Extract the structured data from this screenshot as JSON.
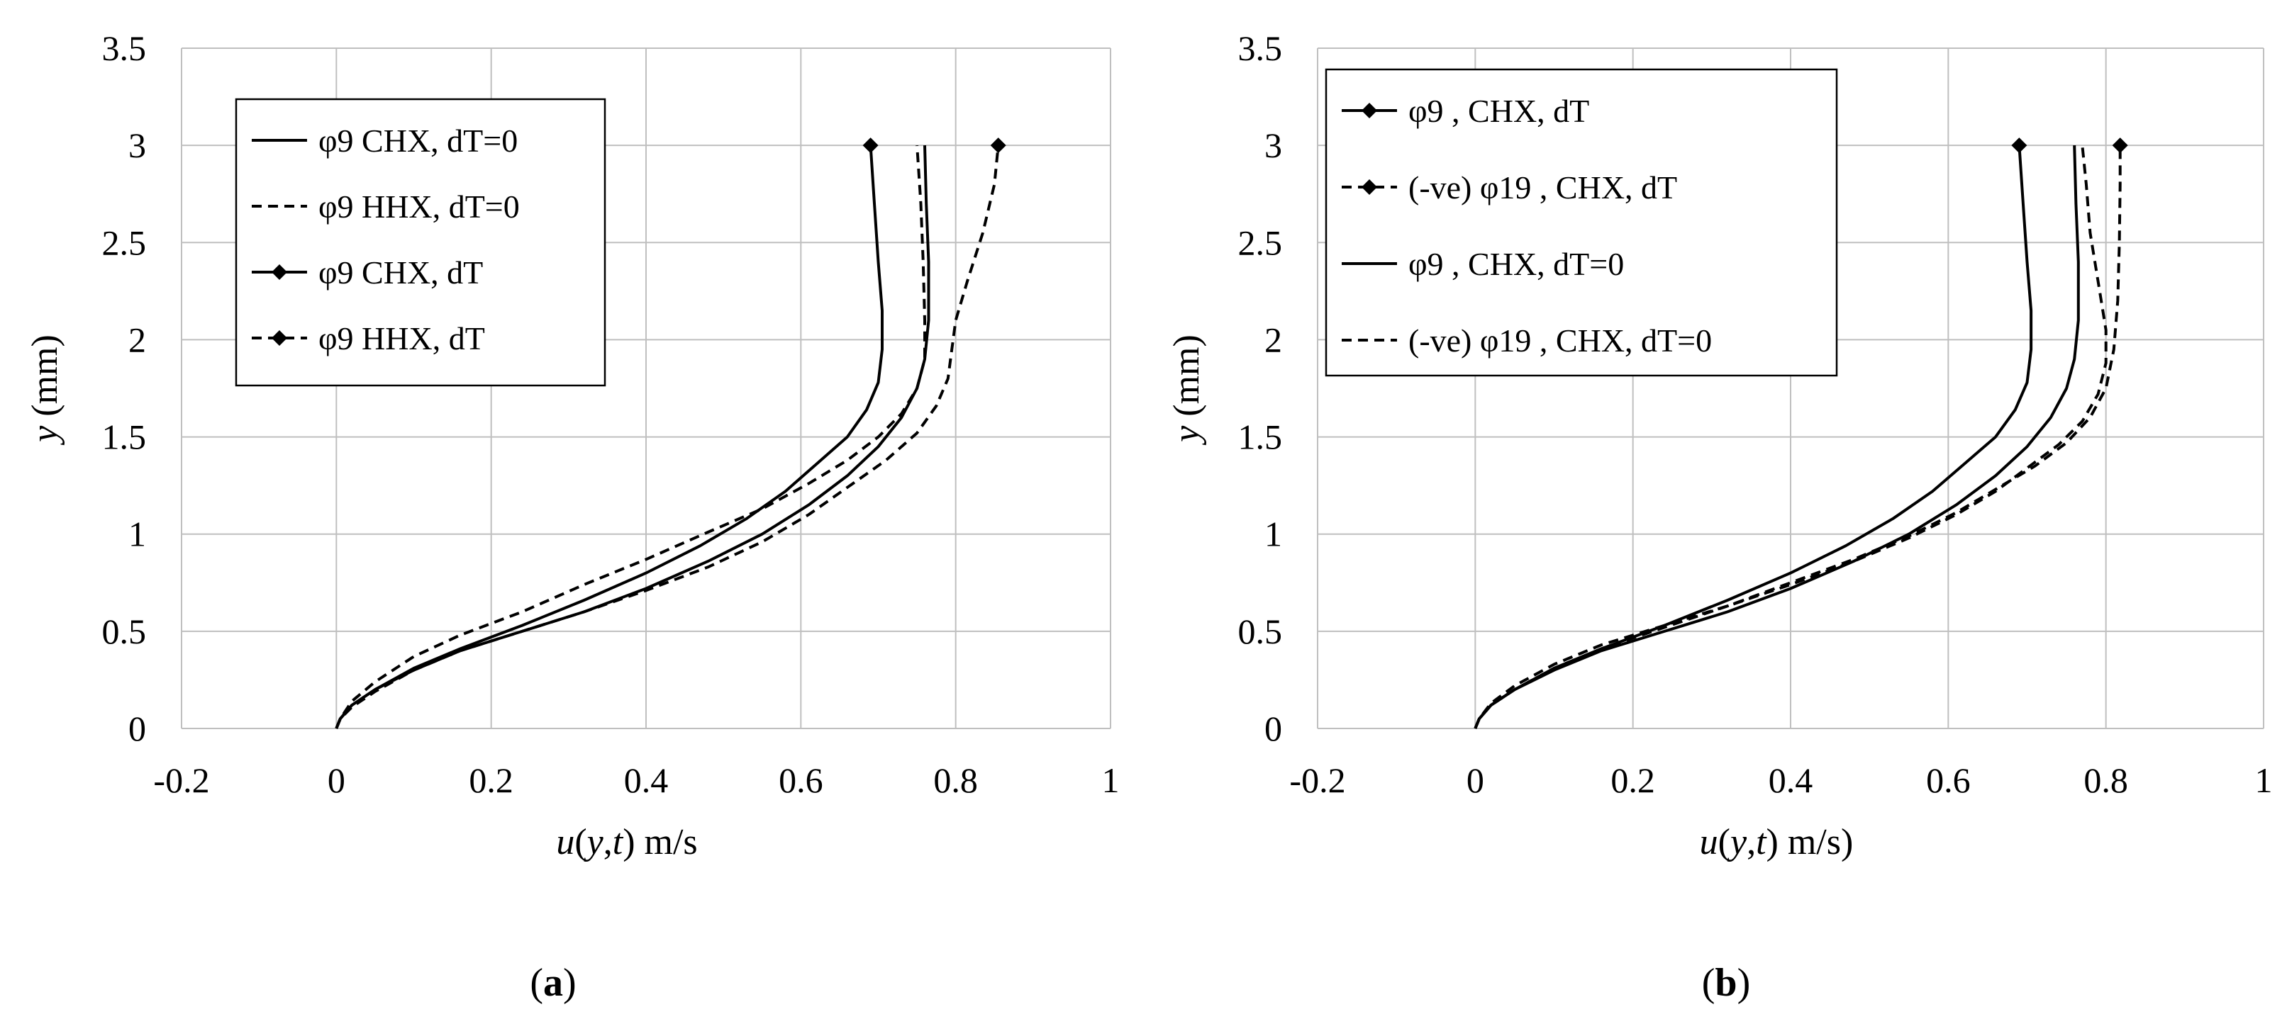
{
  "chart_data": [
    {
      "id": "a",
      "type": "line",
      "caption_letter": "a",
      "xlabel_parts": [
        "u",
        "(",
        "y",
        ",",
        "t",
        ") m/s"
      ],
      "ylabel_parts": [
        "y",
        " (mm)"
      ],
      "xlim": [
        -0.2,
        1
      ],
      "ylim": [
        0,
        3.5
      ],
      "xticks": [
        "-0.2",
        "0",
        "0.2",
        "0.4",
        "0.6",
        "0.8",
        "1"
      ],
      "yticks": [
        "0",
        "0.5",
        "1",
        "1.5",
        "2",
        "2.5",
        "3",
        "3.5"
      ],
      "grid": true,
      "legend_position": "top-left",
      "series": [
        {
          "name": "φ9   CHX, dT=0",
          "dash": "solid",
          "markers": false,
          "x": [
            0,
            0.005,
            0.02,
            0.05,
            0.1,
            0.16,
            0.24,
            0.32,
            0.4,
            0.48,
            0.55,
            0.61,
            0.66,
            0.7,
            0.73,
            0.75,
            0.76,
            0.765,
            0.765,
            0.762,
            0.76
          ],
          "y": [
            0,
            0.05,
            0.12,
            0.2,
            0.3,
            0.4,
            0.5,
            0.6,
            0.72,
            0.86,
            1.0,
            1.15,
            1.3,
            1.45,
            1.6,
            1.75,
            1.9,
            2.1,
            2.4,
            2.7,
            3.0
          ]
        },
        {
          "name": "φ9   HHX, dT=0",
          "dash": "dash",
          "markers": false,
          "x": [
            0,
            0.005,
            0.02,
            0.05,
            0.1,
            0.16,
            0.24,
            0.32,
            0.4,
            0.48,
            0.55,
            0.61,
            0.66,
            0.7,
            0.73,
            0.75,
            0.76,
            0.76,
            0.758,
            0.755,
            0.75
          ],
          "y": [
            0,
            0.05,
            0.14,
            0.24,
            0.37,
            0.48,
            0.6,
            0.74,
            0.87,
            1.01,
            1.13,
            1.26,
            1.38,
            1.5,
            1.62,
            1.75,
            1.9,
            2.1,
            2.4,
            2.7,
            3.0
          ]
        },
        {
          "name": "φ9   CHX, dT",
          "dash": "solid",
          "markers": true,
          "x": [
            0,
            0.005,
            0.02,
            0.05,
            0.1,
            0.16,
            0.24,
            0.32,
            0.4,
            0.47,
            0.53,
            0.58,
            0.62,
            0.66,
            0.685,
            0.7,
            0.705,
            0.705,
            0.7,
            0.695,
            0.69
          ],
          "y": [
            0,
            0.05,
            0.12,
            0.2,
            0.31,
            0.41,
            0.53,
            0.66,
            0.8,
            0.94,
            1.08,
            1.22,
            1.36,
            1.5,
            1.64,
            1.78,
            1.95,
            2.15,
            2.4,
            2.7,
            3.0
          ]
        },
        {
          "name": "φ9   HHX, dT",
          "dash": "dash",
          "markers": true,
          "x": [
            0,
            0.005,
            0.02,
            0.05,
            0.1,
            0.16,
            0.24,
            0.32,
            0.4,
            0.48,
            0.55,
            0.61,
            0.66,
            0.71,
            0.75,
            0.775,
            0.79,
            0.795,
            0.8,
            0.815,
            0.835,
            0.85,
            0.855
          ],
          "y": [
            0,
            0.05,
            0.11,
            0.19,
            0.3,
            0.4,
            0.5,
            0.6,
            0.71,
            0.83,
            0.96,
            1.1,
            1.24,
            1.38,
            1.52,
            1.66,
            1.8,
            1.95,
            2.1,
            2.3,
            2.55,
            2.8,
            3.0
          ]
        }
      ]
    },
    {
      "id": "b",
      "type": "line",
      "caption_letter": "b",
      "xlabel_parts": [
        "u",
        "(",
        "y",
        ",",
        "t",
        ") m/s)"
      ],
      "ylabel_parts": [
        "y",
        " (mm)"
      ],
      "xlim": [
        -0.2,
        1
      ],
      "ylim": [
        0,
        3.5
      ],
      "xticks": [
        "-0.2",
        "0",
        "0.2",
        "0.4",
        "0.6",
        "0.8",
        "1"
      ],
      "yticks": [
        "0",
        "0.5",
        "1",
        "1.5",
        "2",
        "2.5",
        "3",
        "3.5"
      ],
      "grid": true,
      "legend_position": "top-left",
      "series": [
        {
          "name": "φ9  , CHX, dT",
          "dash": "solid",
          "markers": true,
          "x": [
            0,
            0.005,
            0.02,
            0.05,
            0.1,
            0.16,
            0.24,
            0.32,
            0.4,
            0.47,
            0.53,
            0.58,
            0.62,
            0.66,
            0.685,
            0.7,
            0.705,
            0.705,
            0.7,
            0.695,
            0.69
          ],
          "y": [
            0,
            0.05,
            0.12,
            0.2,
            0.31,
            0.41,
            0.53,
            0.66,
            0.8,
            0.94,
            1.08,
            1.22,
            1.36,
            1.5,
            1.64,
            1.78,
            1.95,
            2.15,
            2.4,
            2.7,
            3.0
          ]
        },
        {
          "name": "(-ve) φ19  , CHX, dT",
          "dash": "dash",
          "markers": true,
          "x": [
            0,
            0.005,
            0.02,
            0.05,
            0.1,
            0.16,
            0.24,
            0.32,
            0.4,
            0.48,
            0.55,
            0.61,
            0.66,
            0.71,
            0.75,
            0.78,
            0.8,
            0.81,
            0.815,
            0.817,
            0.818,
            0.818
          ],
          "y": [
            0,
            0.05,
            0.12,
            0.2,
            0.31,
            0.41,
            0.52,
            0.63,
            0.75,
            0.87,
            0.99,
            1.11,
            1.23,
            1.35,
            1.47,
            1.6,
            1.75,
            1.95,
            2.2,
            2.5,
            2.8,
            3.0
          ]
        },
        {
          "name": "φ9  , CHX, dT=0",
          "dash": "solid",
          "markers": false,
          "x": [
            0,
            0.005,
            0.02,
            0.05,
            0.1,
            0.16,
            0.24,
            0.32,
            0.4,
            0.48,
            0.55,
            0.61,
            0.66,
            0.7,
            0.73,
            0.75,
            0.76,
            0.765,
            0.765,
            0.762,
            0.76
          ],
          "y": [
            0,
            0.05,
            0.12,
            0.2,
            0.3,
            0.4,
            0.5,
            0.6,
            0.72,
            0.86,
            1.0,
            1.15,
            1.3,
            1.45,
            1.6,
            1.75,
            1.9,
            2.1,
            2.4,
            2.7,
            3.0
          ]
        },
        {
          "name": "(-ve) φ19  , CHX, dT=0",
          "dash": "dash",
          "markers": false,
          "x": [
            0,
            0.005,
            0.02,
            0.05,
            0.1,
            0.16,
            0.24,
            0.32,
            0.4,
            0.48,
            0.55,
            0.61,
            0.66,
            0.7,
            0.74,
            0.77,
            0.79,
            0.8,
            0.8,
            0.79,
            0.78,
            0.775,
            0.77
          ],
          "y": [
            0,
            0.05,
            0.13,
            0.22,
            0.33,
            0.43,
            0.53,
            0.63,
            0.74,
            0.86,
            0.98,
            1.1,
            1.22,
            1.34,
            1.46,
            1.58,
            1.72,
            1.88,
            2.05,
            2.3,
            2.55,
            2.8,
            3.0
          ]
        }
      ]
    }
  ]
}
